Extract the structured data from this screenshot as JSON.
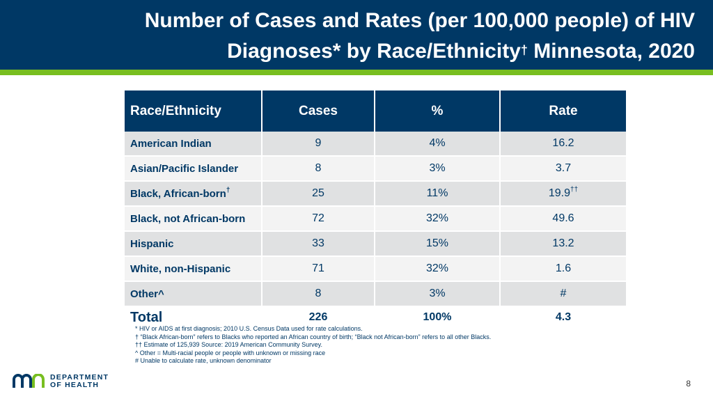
{
  "title": {
    "line1": "Number of Cases and Rates (per 100,000 people) of HIV",
    "line2_a": "Diagnoses* by Race/Ethnicity",
    "line2_mark": "†",
    "line2_b": " Minnesota, 2020"
  },
  "table": {
    "headers": [
      "Race/Ethnicity",
      "Cases",
      "%",
      "Rate"
    ],
    "rows": [
      {
        "race": "American Indian",
        "race_mark": "",
        "cases": "9",
        "pct": "4%",
        "rate": "16.2",
        "rate_mark": ""
      },
      {
        "race": "Asian/Pacific Islander",
        "race_mark": "",
        "cases": "8",
        "pct": "3%",
        "rate": "3.7",
        "rate_mark": ""
      },
      {
        "race": "Black, African-born",
        "race_mark": "†",
        "cases": "25",
        "pct": "11%",
        "rate": "19.9",
        "rate_mark": "††"
      },
      {
        "race": "Black, not African-born",
        "race_mark": "",
        "cases": "72",
        "pct": "32%",
        "rate": "49.6",
        "rate_mark": ""
      },
      {
        "race": "Hispanic",
        "race_mark": "",
        "cases": "33",
        "pct": "15%",
        "rate": "13.2",
        "rate_mark": ""
      },
      {
        "race": "White, non-Hispanic",
        "race_mark": "",
        "cases": "71",
        "pct": "32%",
        "rate": "1.6",
        "rate_mark": ""
      },
      {
        "race": "Other^",
        "race_mark": "",
        "cases": "8",
        "pct": "3%",
        "rate": "#",
        "rate_mark": ""
      }
    ],
    "total": {
      "label": "Total",
      "cases": "226",
      "pct": "100%",
      "rate": "4.3"
    }
  },
  "footnotes": [
    "* HIV or AIDS at first diagnosis; 2010 U.S. Census Data used for rate calculations.",
    "† “Black African-born” refers to Blacks who reported an African country of birth; “Black not African-born” refers to all other Blacks.",
    "†† Estimate of 125,939 Source: 2019 American Community Survey.",
    "^ Other = Multi-racial people or people with unknown or missing race",
    "# Unable to calculate rate, unknown denominator"
  ],
  "logo": {
    "line1": "DEPARTMENT",
    "line2": "OF HEALTH"
  },
  "page_number": "8",
  "colors": {
    "navy": "#003865",
    "green": "#78be20",
    "row_alt": "#e0e1e2",
    "row_plain": "#f3f3f3"
  }
}
